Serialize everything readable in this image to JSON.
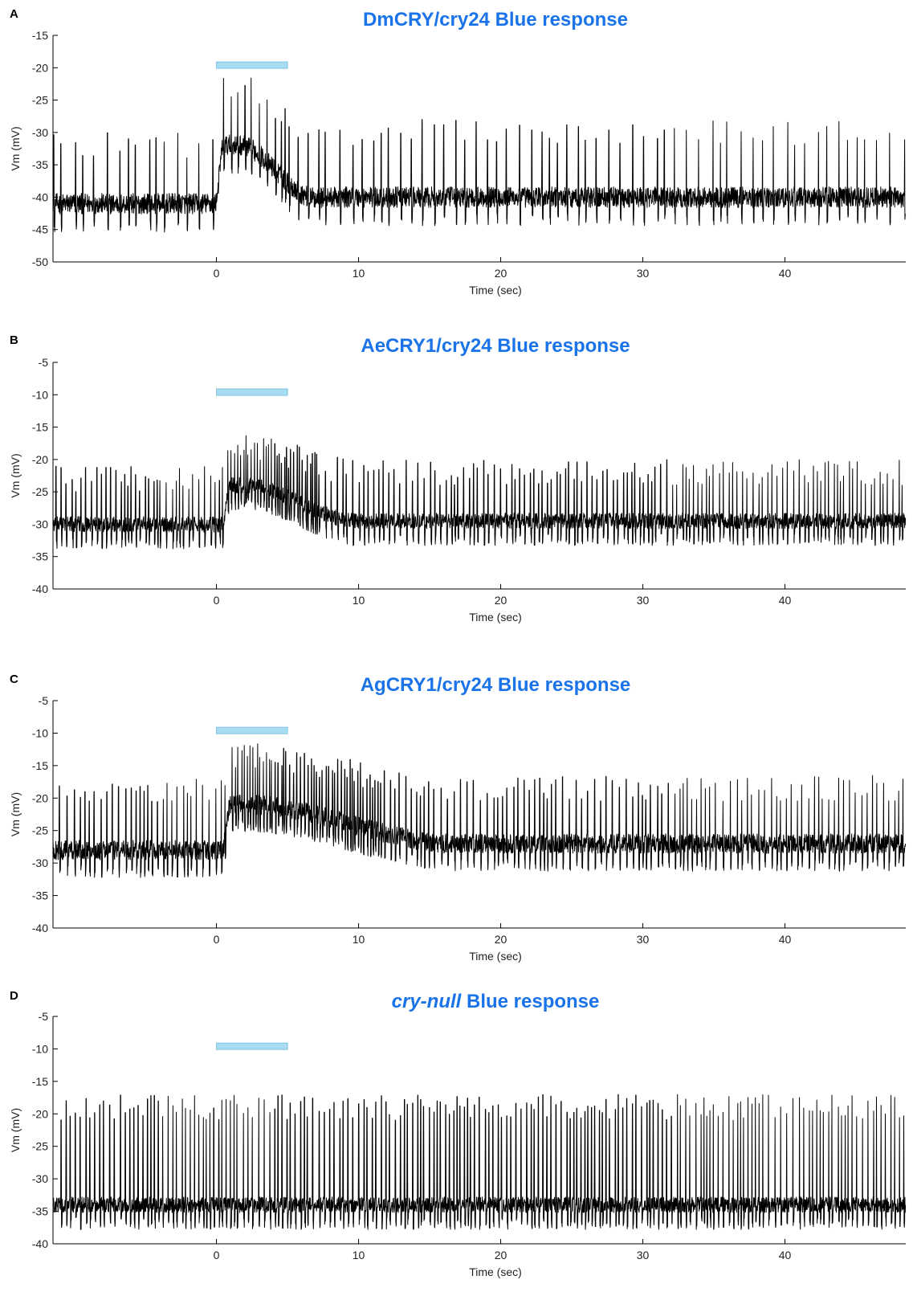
{
  "chart_data": [
    {
      "type": "line",
      "panel_label": "A",
      "title": "DmCRY/cry24 Blue response",
      "title_italic_part": "",
      "xlabel": "Time (sec)",
      "ylabel": "Vm (mV)",
      "xlim": [
        -11.5,
        48.5
      ],
      "ylim": [
        -50,
        -15
      ],
      "xticks": [
        0,
        10,
        20,
        30,
        40
      ],
      "yticks": [
        -15,
        -20,
        -25,
        -30,
        -35,
        -40,
        -45,
        -50
      ],
      "stimulus": {
        "start": 0,
        "end": 5,
        "level": -19.6,
        "color": "#a9dcf0"
      },
      "trace": {
        "baseline_pre": -41,
        "peak_response": -32,
        "response_start": 0,
        "response_end": 7,
        "spike_peak_pre": -32,
        "spike_peak_response": -23,
        "spike_peak_post": -30,
        "baseline_post": -40,
        "noise": 1.6,
        "spike_interval": 0.7
      }
    },
    {
      "type": "line",
      "panel_label": "B",
      "title": "AeCRY1/cry24 Blue response",
      "title_italic_part": "",
      "xlabel": "Time (sec)",
      "ylabel": "Vm (mV)",
      "xlim": [
        -11.5,
        48.5
      ],
      "ylim": [
        -40,
        -5
      ],
      "xticks": [
        0,
        10,
        20,
        30,
        40
      ],
      "yticks": [
        -5,
        -10,
        -15,
        -20,
        -25,
        -30,
        -35,
        -40
      ],
      "stimulus": {
        "start": 0,
        "end": 5,
        "level": -9.6,
        "color": "#a9dcf0"
      },
      "trace": {
        "baseline_pre": -30,
        "peak_response": -24,
        "response_start": 0.5,
        "response_end": 10,
        "spike_peak_pre": -23,
        "spike_peak_response": -18,
        "spike_peak_post": -22,
        "baseline_post": -29.5,
        "noise": 1.2,
        "spike_interval": 0.3
      }
    },
    {
      "type": "line",
      "panel_label": "C",
      "title": "AgCRY1/cry24 Blue response",
      "title_italic_part": "",
      "xlabel": "Time (sec)",
      "ylabel": "Vm (mV)",
      "xlim": [
        -11.5,
        48.5
      ],
      "ylim": [
        -40,
        -5
      ],
      "xticks": [
        0,
        10,
        20,
        30,
        40
      ],
      "yticks": [
        -5,
        -10,
        -15,
        -20,
        -25,
        -30,
        -35,
        -40
      ],
      "stimulus": {
        "start": 0,
        "end": 5,
        "level": -9.6,
        "color": "#a9dcf0"
      },
      "trace": {
        "baseline_pre": -28,
        "peak_response": -21,
        "response_start": 0.5,
        "response_end": 17,
        "spike_peak_pre": -19,
        "spike_peak_response": -13.5,
        "spike_peak_post": -18.5,
        "baseline_post": -27,
        "noise": 1.5,
        "spike_interval": 0.35
      }
    },
    {
      "type": "line",
      "panel_label": "D",
      "title": "Blue response",
      "title_italic_part": "cry-null",
      "xlabel": "Time (sec)",
      "ylabel": "Vm (mV)",
      "xlim": [
        -11.5,
        48.5
      ],
      "ylim": [
        -40,
        -5
      ],
      "xticks": [
        0,
        10,
        20,
        30,
        40
      ],
      "yticks": [
        -5,
        -10,
        -15,
        -20,
        -25,
        -30,
        -35,
        -40
      ],
      "stimulus": {
        "start": 0,
        "end": 5,
        "level": -9.6,
        "color": "#a9dcf0"
      },
      "trace": {
        "baseline_pre": -34,
        "peak_response": -34,
        "response_start": 0,
        "response_end": 0,
        "spike_peak_pre": -19,
        "spike_peak_response": -19,
        "spike_peak_post": -19,
        "baseline_post": -34,
        "noise": 1.2,
        "spike_interval": 0.3
      }
    }
  ]
}
